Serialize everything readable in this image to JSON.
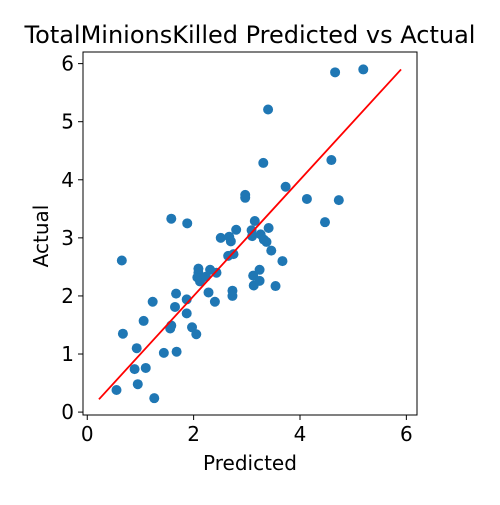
{
  "chart_data": {
    "type": "scatter",
    "title": "TotalMinionsKilled Predicted vs Actual",
    "xlabel": "Predicted",
    "ylabel": "Actual",
    "xlim": [
      -0.08,
      6.2
    ],
    "ylim": [
      -0.05,
      6.2
    ],
    "x_ticks": [
      0,
      2,
      4,
      6
    ],
    "y_ticks": [
      0,
      1,
      2,
      3,
      4,
      5,
      6
    ],
    "grid": false,
    "colors": {
      "points": "#1f77b4",
      "line": "#ff0000",
      "axes": "#000000"
    },
    "reference_line": {
      "x": [
        0.22,
        5.9
      ],
      "y": [
        0.22,
        5.9
      ]
    },
    "points": [
      {
        "x": 0.55,
        "y": 0.38
      },
      {
        "x": 0.65,
        "y": 2.61
      },
      {
        "x": 0.67,
        "y": 1.35
      },
      {
        "x": 0.89,
        "y": 0.74
      },
      {
        "x": 0.93,
        "y": 1.1
      },
      {
        "x": 0.95,
        "y": 0.48
      },
      {
        "x": 1.06,
        "y": 1.57
      },
      {
        "x": 1.1,
        "y": 0.76
      },
      {
        "x": 1.23,
        "y": 1.9
      },
      {
        "x": 1.26,
        "y": 0.24
      },
      {
        "x": 1.44,
        "y": 1.02
      },
      {
        "x": 1.56,
        "y": 1.44
      },
      {
        "x": 1.58,
        "y": 3.33
      },
      {
        "x": 1.58,
        "y": 1.49
      },
      {
        "x": 1.65,
        "y": 1.81
      },
      {
        "x": 1.67,
        "y": 2.04
      },
      {
        "x": 1.68,
        "y": 1.04
      },
      {
        "x": 1.87,
        "y": 1.94
      },
      {
        "x": 1.87,
        "y": 1.7
      },
      {
        "x": 1.88,
        "y": 3.25
      },
      {
        "x": 1.97,
        "y": 1.46
      },
      {
        "x": 2.05,
        "y": 1.34
      },
      {
        "x": 2.07,
        "y": 2.32
      },
      {
        "x": 2.09,
        "y": 2.4
      },
      {
        "x": 2.09,
        "y": 2.47
      },
      {
        "x": 2.12,
        "y": 2.25
      },
      {
        "x": 2.23,
        "y": 2.33
      },
      {
        "x": 2.28,
        "y": 2.06
      },
      {
        "x": 2.31,
        "y": 2.45
      },
      {
        "x": 2.4,
        "y": 1.9
      },
      {
        "x": 2.43,
        "y": 2.4
      },
      {
        "x": 2.51,
        "y": 3.0
      },
      {
        "x": 2.65,
        "y": 2.69
      },
      {
        "x": 2.67,
        "y": 3.02
      },
      {
        "x": 2.7,
        "y": 2.94
      },
      {
        "x": 2.73,
        "y": 2.09
      },
      {
        "x": 2.73,
        "y": 2.0
      },
      {
        "x": 2.75,
        "y": 2.72
      },
      {
        "x": 2.8,
        "y": 3.14
      },
      {
        "x": 2.97,
        "y": 3.69
      },
      {
        "x": 2.97,
        "y": 3.74
      },
      {
        "x": 3.09,
        "y": 3.13
      },
      {
        "x": 3.1,
        "y": 3.03
      },
      {
        "x": 3.12,
        "y": 2.35
      },
      {
        "x": 3.13,
        "y": 2.18
      },
      {
        "x": 3.15,
        "y": 3.29
      },
      {
        "x": 3.24,
        "y": 2.45
      },
      {
        "x": 3.24,
        "y": 2.26
      },
      {
        "x": 3.26,
        "y": 3.06
      },
      {
        "x": 3.31,
        "y": 4.29
      },
      {
        "x": 3.32,
        "y": 2.97
      },
      {
        "x": 3.37,
        "y": 2.93
      },
      {
        "x": 3.4,
        "y": 5.21
      },
      {
        "x": 3.41,
        "y": 3.17
      },
      {
        "x": 3.46,
        "y": 2.78
      },
      {
        "x": 3.54,
        "y": 2.17
      },
      {
        "x": 3.67,
        "y": 2.6
      },
      {
        "x": 3.73,
        "y": 3.88
      },
      {
        "x": 4.13,
        "y": 3.67
      },
      {
        "x": 4.47,
        "y": 3.27
      },
      {
        "x": 4.59,
        "y": 4.34
      },
      {
        "x": 4.66,
        "y": 5.85
      },
      {
        "x": 4.73,
        "y": 3.65
      },
      {
        "x": 5.19,
        "y": 5.9
      }
    ]
  }
}
